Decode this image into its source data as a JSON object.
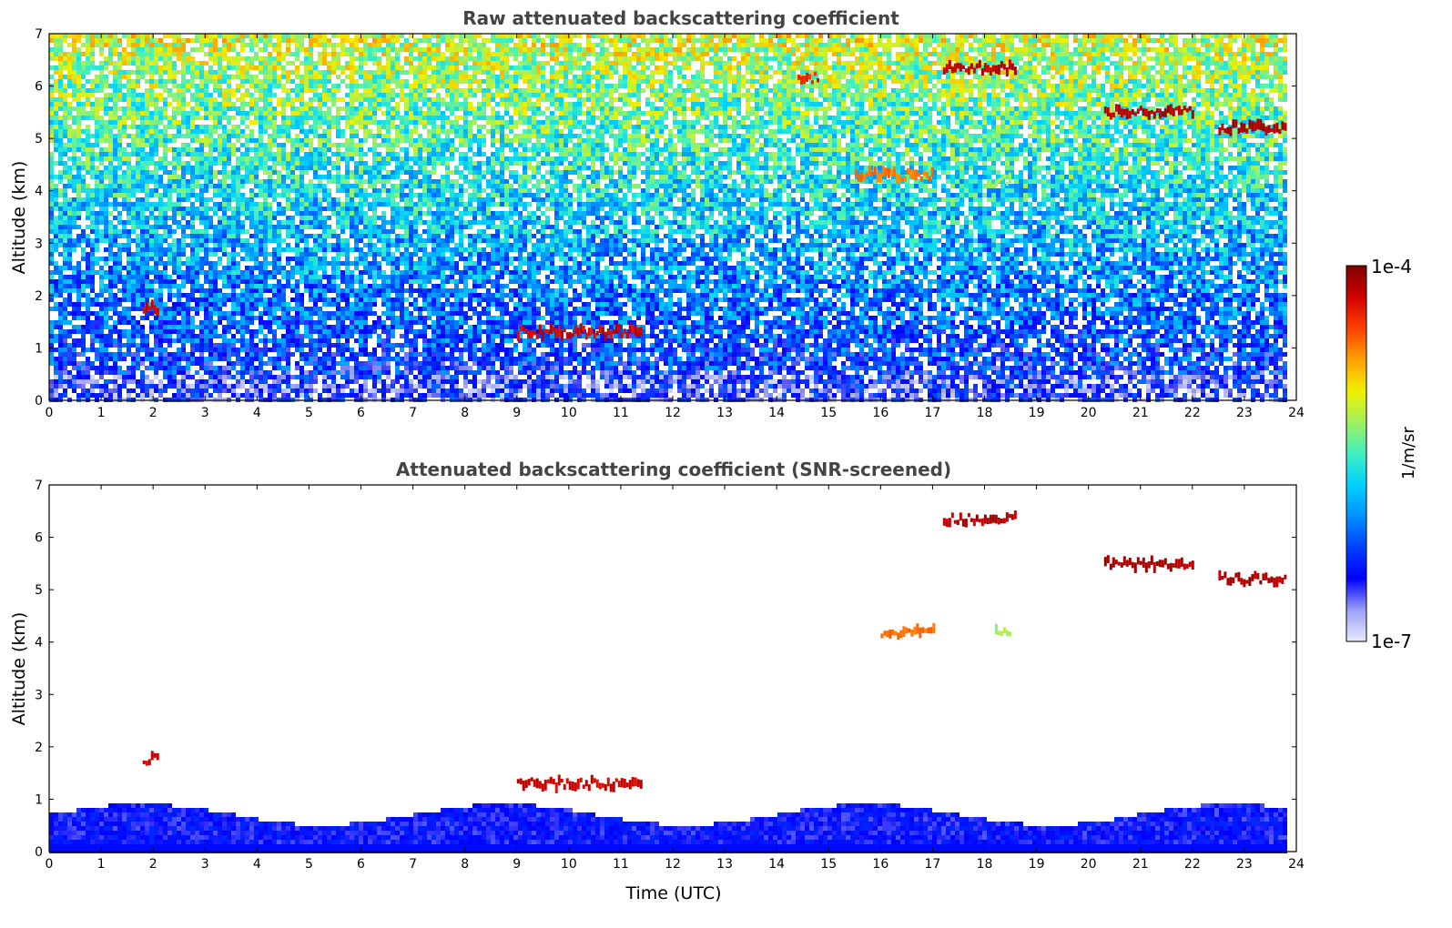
{
  "chart_data": [
    {
      "type": "heatmap",
      "title": "Raw attenuated backscattering coefficient",
      "xlabel": "",
      "ylabel": "Altitude (km)",
      "xlim": [
        0,
        24
      ],
      "ylim": [
        0,
        7
      ],
      "xticks": [
        "0",
        "1",
        "2",
        "3",
        "4",
        "5",
        "6",
        "7",
        "8",
        "9",
        "10",
        "11",
        "12",
        "13",
        "14",
        "15",
        "16",
        "17",
        "18",
        "19",
        "20",
        "21",
        "22",
        "23",
        "24"
      ],
      "yticks": [
        "0",
        "1",
        "2",
        "3",
        "4",
        "5",
        "6",
        "7"
      ],
      "features": [
        {
          "x0": 17.2,
          "x1": 18.6,
          "y": 6.35,
          "level": 0.97
        },
        {
          "x0": 20.3,
          "x1": 22.0,
          "y": 5.5,
          "level": 0.98
        },
        {
          "x0": 22.5,
          "x1": 23.8,
          "y": 5.2,
          "level": 0.98
        },
        {
          "x0": 14.4,
          "x1": 14.8,
          "y": 6.15,
          "level": 0.9
        },
        {
          "x0": 15.5,
          "x1": 17.0,
          "y": 4.3,
          "level": 0.82
        },
        {
          "x0": 18.2,
          "x1": 18.5,
          "y": 4.2,
          "level": 0.62
        },
        {
          "x0": 9.0,
          "x1": 11.4,
          "y": 1.3,
          "level": 0.95
        },
        {
          "x0": 1.8,
          "x1": 2.1,
          "y": 1.75,
          "level": 0.95
        }
      ]
    },
    {
      "type": "heatmap",
      "title": "Attenuated backscattering coefficient (SNR-screened)",
      "xlabel": "Time (UTC)",
      "ylabel": "Altitude (km)",
      "xlim": [
        0,
        24
      ],
      "ylim": [
        0,
        7
      ],
      "xticks": [
        "0",
        "1",
        "2",
        "3",
        "4",
        "5",
        "6",
        "7",
        "8",
        "9",
        "10",
        "11",
        "12",
        "13",
        "14",
        "15",
        "16",
        "17",
        "18",
        "19",
        "20",
        "21",
        "22",
        "23",
        "24"
      ],
      "yticks": [
        "0",
        "1",
        "2",
        "3",
        "4",
        "5",
        "6",
        "7"
      ],
      "features": [
        {
          "x0": 17.2,
          "x1": 18.6,
          "y": 6.35,
          "level": 0.97
        },
        {
          "x0": 20.3,
          "x1": 22.0,
          "y": 5.5,
          "level": 0.98
        },
        {
          "x0": 22.5,
          "x1": 23.8,
          "y": 5.2,
          "level": 0.98
        },
        {
          "x0": 16.0,
          "x1": 17.0,
          "y": 4.2,
          "level": 0.82
        },
        {
          "x0": 18.2,
          "x1": 18.5,
          "y": 4.2,
          "level": 0.62
        },
        {
          "x0": 9.0,
          "x1": 11.4,
          "y": 1.3,
          "level": 0.95
        },
        {
          "x0": 1.8,
          "x1": 2.1,
          "y": 1.75,
          "level": 0.95
        }
      ]
    }
  ],
  "colorbar": {
    "max_label": "1e-4",
    "min_label": "1e-7",
    "unit": "1/m/sr",
    "colors": [
      "#e8ebff",
      "#9aa0f5",
      "#0000ff",
      "#0040ff",
      "#0090ff",
      "#00d0ff",
      "#40f0c0",
      "#a0f060",
      "#f0f000",
      "#ffa000",
      "#ff4000",
      "#d00000",
      "#800000"
    ]
  }
}
